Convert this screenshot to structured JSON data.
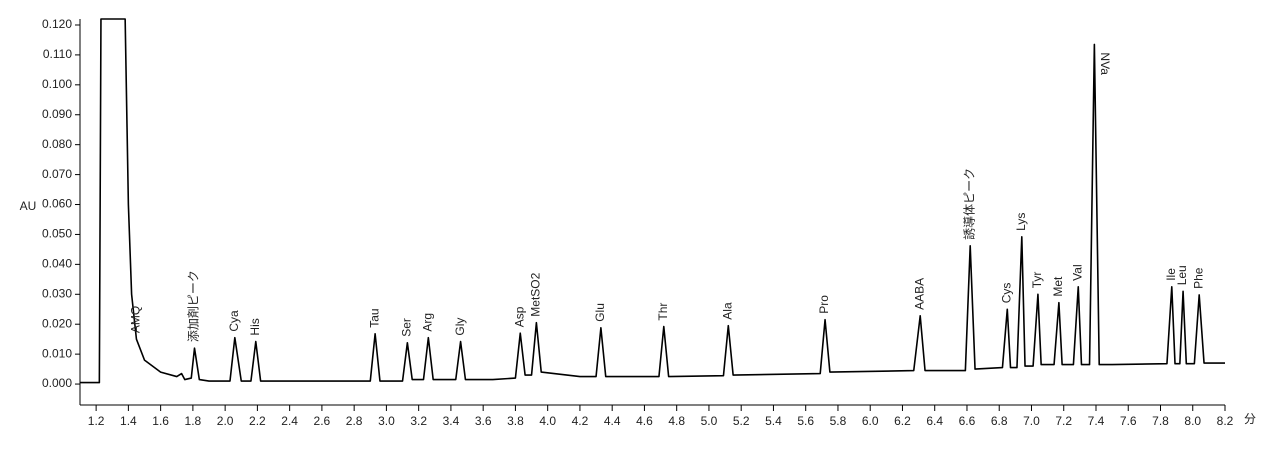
{
  "chart_data": {
    "type": "line",
    "xlabel": "分",
    "ylabel": "AU",
    "xlim": [
      1.1,
      8.2
    ],
    "ylim": [
      -0.007,
      0.122
    ],
    "xticks": [
      1.2,
      1.4,
      1.6,
      1.8,
      {
        "value": 2,
        "label": "2.0"
      },
      2.2,
      2.4,
      2.6,
      2.8,
      {
        "value": 3,
        "label": "3.0"
      },
      3.2,
      3.4,
      3.6,
      3.8,
      {
        "value": 4,
        "label": "4.0"
      },
      4.2,
      4.4,
      4.6,
      4.8,
      {
        "value": 5,
        "label": "5.0"
      },
      5.2,
      5.4,
      5.6,
      5.8,
      {
        "value": 6,
        "label": "6.0"
      },
      6.2,
      6.4,
      6.6,
      6.8,
      {
        "value": 7,
        "label": "7.0"
      },
      7.2,
      7.4,
      7.6,
      7.8,
      {
        "value": 8,
        "label": "8.0"
      },
      8.2
    ],
    "yticks": [
      {
        "value": 0,
        "label": "0.000"
      },
      {
        "value": 0.01,
        "label": "0.010"
      },
      {
        "value": 0.02,
        "label": "0.020"
      },
      {
        "value": 0.03,
        "label": "0.030"
      },
      {
        "value": 0.04,
        "label": "0.040"
      },
      {
        "value": 0.05,
        "label": "0.050"
      },
      {
        "value": 0.06,
        "label": "0.060"
      },
      {
        "value": 0.07,
        "label": "0.070"
      },
      {
        "value": 0.08,
        "label": "0.080"
      },
      {
        "value": 0.09,
        "label": "0.090"
      },
      {
        "value": 0.1,
        "label": "0.100"
      },
      {
        "value": 0.11,
        "label": "0.110"
      },
      {
        "value": 0.12,
        "label": "0.120"
      }
    ],
    "x": [
      1.1,
      1.22,
      1.23,
      1.38,
      1.4,
      1.42,
      1.45,
      1.5,
      1.6,
      1.7,
      1.73,
      1.75,
      1.79,
      1.81,
      1.84,
      1.9,
      2.03,
      2.06,
      2.1,
      2.16,
      2.19,
      2.22,
      2.9,
      2.93,
      2.96,
      3.1,
      3.13,
      3.16,
      3.23,
      3.26,
      3.29,
      3.43,
      3.46,
      3.49,
      3.66,
      3.8,
      3.83,
      3.86,
      3.9,
      3.93,
      3.96,
      4.2,
      4.3,
      4.33,
      4.36,
      4.69,
      4.72,
      4.75,
      5.09,
      5.12,
      5.15,
      5.69,
      5.72,
      5.75,
      6.27,
      6.31,
      6.34,
      6.59,
      6.62,
      6.65,
      6.82,
      6.85,
      6.87,
      6.91,
      6.94,
      6.96,
      7.01,
      7.04,
      7.06,
      7.14,
      7.17,
      7.19,
      7.26,
      7.29,
      7.31,
      7.36,
      7.39,
      7.42,
      7.5,
      7.84,
      7.87,
      7.89,
      7.92,
      7.94,
      7.96,
      8.01,
      8.04,
      8.07,
      8.2
    ],
    "series": [
      {
        "color": "#000000",
        "values": [
          0.0005,
          0.0005,
          0.122,
          0.122,
          0.06,
          0.03,
          0.015,
          0.008,
          0.004,
          0.0025,
          0.0035,
          0.0015,
          0.002,
          0.012,
          0.0015,
          0.001,
          0.001,
          0.0155,
          0.001,
          0.001,
          0.0142,
          0.001,
          0.001,
          0.0168,
          0.001,
          0.001,
          0.0138,
          0.0015,
          0.0015,
          0.0155,
          0.0015,
          0.0015,
          0.0142,
          0.0015,
          0.0015,
          0.002,
          0.017,
          0.003,
          0.003,
          0.0205,
          0.004,
          0.0025,
          0.0025,
          0.0188,
          0.0025,
          0.0025,
          0.0192,
          0.0025,
          0.0028,
          0.0195,
          0.003,
          0.0035,
          0.0215,
          0.004,
          0.0045,
          0.0228,
          0.0045,
          0.0045,
          0.0462,
          0.005,
          0.0055,
          0.025,
          0.0055,
          0.0055,
          0.0492,
          0.006,
          0.006,
          0.03,
          0.0065,
          0.0065,
          0.0272,
          0.0065,
          0.0065,
          0.0325,
          0.0065,
          0.0065,
          0.1135,
          0.0065,
          0.0065,
          0.0068,
          0.0325,
          0.0068,
          0.0068,
          0.031,
          0.0068,
          0.0068,
          0.0298,
          0.007,
          0.007
        ]
      }
    ],
    "annotations": [
      {
        "text": "AMQ",
        "x": 1.45
      },
      {
        "text": "添加剤ピーク",
        "x": 1.81
      },
      {
        "text": "Cya",
        "x": 2.06
      },
      {
        "text": "His",
        "x": 2.19
      },
      {
        "text": "Tau",
        "x": 2.93
      },
      {
        "text": "Ser",
        "x": 3.13
      },
      {
        "text": "Arg",
        "x": 3.26
      },
      {
        "text": "Gly",
        "x": 3.46
      },
      {
        "text": "Asp",
        "x": 3.83
      },
      {
        "text": "MetSO2",
        "x": 3.93
      },
      {
        "text": "Glu",
        "x": 4.33
      },
      {
        "text": "Thr",
        "x": 4.72
      },
      {
        "text": "Ala",
        "x": 5.12
      },
      {
        "text": "Pro",
        "x": 5.72
      },
      {
        "text": "AABA",
        "x": 6.31
      },
      {
        "text": "誘導体ピーク",
        "x": 6.62
      },
      {
        "text": "Cys",
        "x": 6.85
      },
      {
        "text": "Lys",
        "x": 6.94
      },
      {
        "text": "Tyr",
        "x": 7.04
      },
      {
        "text": "Met",
        "x": 7.17
      },
      {
        "text": "Val",
        "x": 7.29
      },
      {
        "text": "NVa",
        "x": 7.39
      },
      {
        "text": "Ile",
        "x": 7.87
      },
      {
        "text": "Leu",
        "x": 7.94
      },
      {
        "text": "Phe",
        "x": 8.04
      }
    ]
  }
}
